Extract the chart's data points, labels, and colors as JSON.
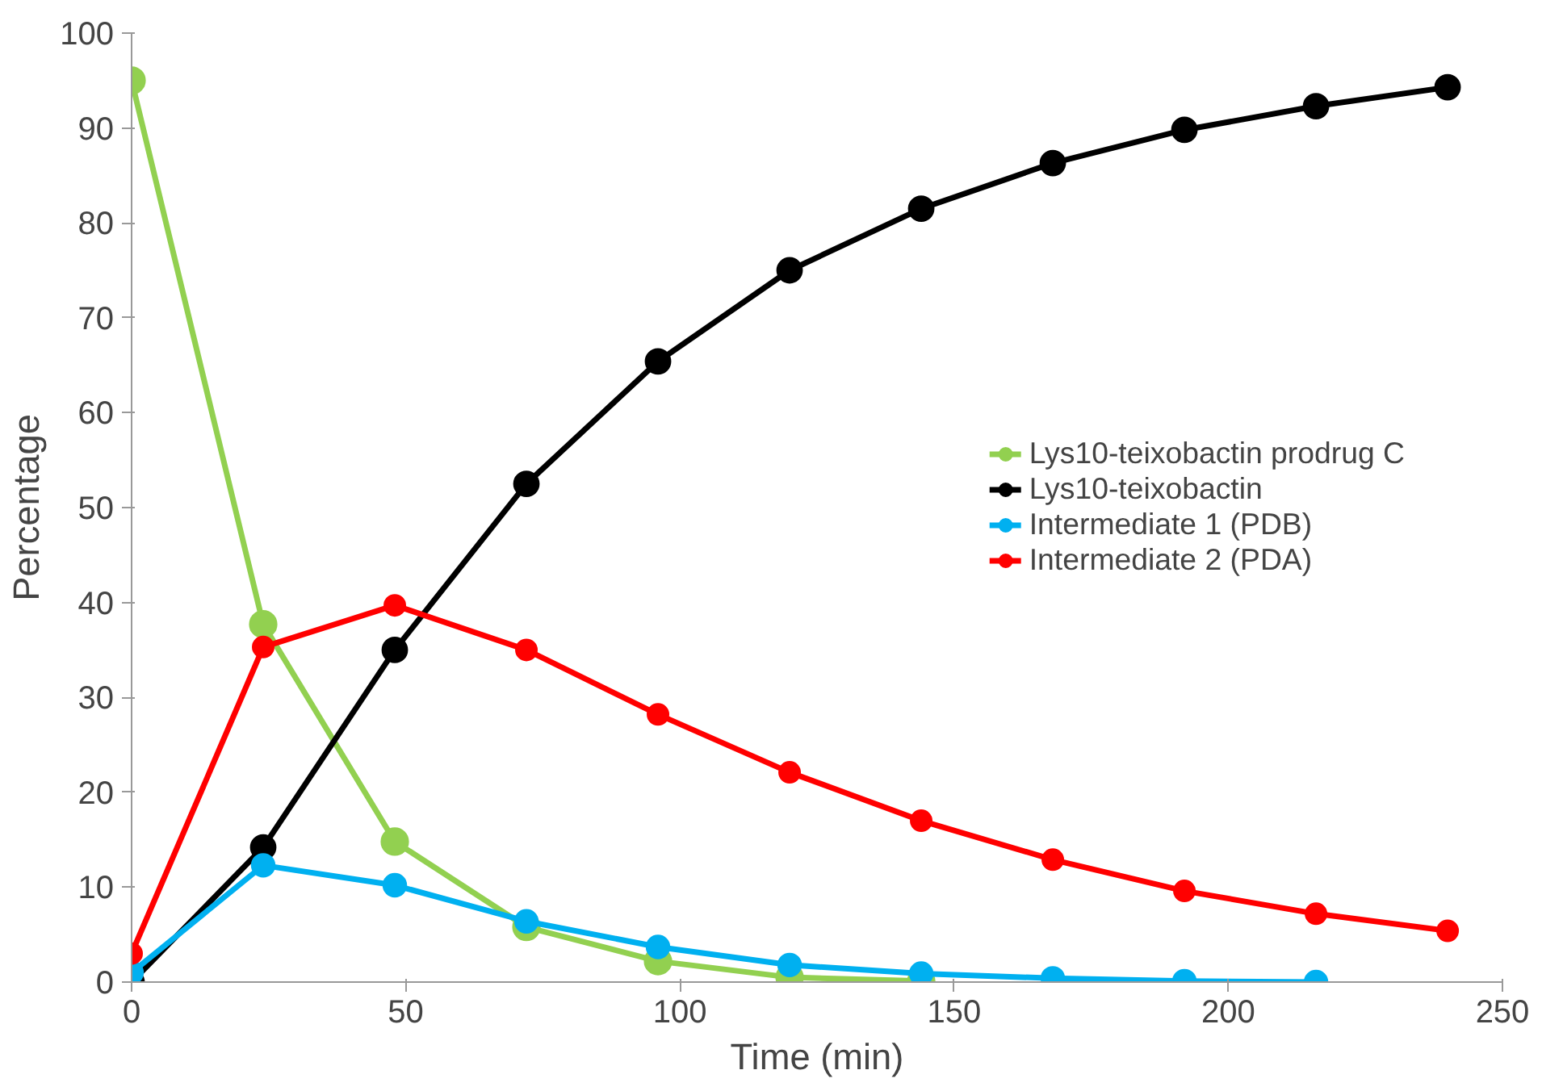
{
  "chart_data": {
    "type": "line",
    "xlabel": "Time (min)",
    "ylabel": "Percentage",
    "xlim": [
      0,
      250
    ],
    "ylim": [
      0,
      100
    ],
    "xticks": [
      0,
      50,
      100,
      150,
      200,
      250
    ],
    "yticks": [
      0,
      10,
      20,
      30,
      40,
      50,
      60,
      70,
      80,
      90,
      100
    ],
    "grid": false,
    "legend": "right",
    "marker": "circle",
    "line_style": "solid",
    "series": [
      {
        "name": "Lys10-teixobactin prodrug C",
        "color": "#92d050",
        "x": [
          0,
          24,
          48,
          72,
          96,
          120,
          144
        ],
        "values": [
          95,
          37.7,
          14.8,
          5.8,
          2.2,
          0.5,
          0.1
        ]
      },
      {
        "name": "Lys10-teixobactin",
        "color": "#000000",
        "x": [
          0,
          24,
          48,
          72,
          96,
          120,
          144,
          168,
          192,
          216,
          240
        ],
        "values": [
          0,
          14.2,
          35,
          52.5,
          65.4,
          75,
          81.5,
          86.3,
          89.8,
          92.3,
          94.3
        ]
      },
      {
        "name": "Intermediate 1 (PDB)",
        "color": "#00b0f0",
        "x": [
          0,
          24,
          48,
          72,
          96,
          120,
          144,
          168,
          192,
          216
        ],
        "values": [
          1,
          12.3,
          10.2,
          6.4,
          3.7,
          1.8,
          0.9,
          0.4,
          0.1,
          0
        ]
      },
      {
        "name": "Intermediate 2 (PDA)",
        "color": "#ff0000",
        "x": [
          0,
          24,
          48,
          72,
          96,
          120,
          144,
          168,
          192,
          216,
          240
        ],
        "values": [
          3,
          35.3,
          39.7,
          35,
          28.2,
          22.1,
          17,
          12.9,
          9.6,
          7.2,
          5.4
        ]
      }
    ]
  }
}
